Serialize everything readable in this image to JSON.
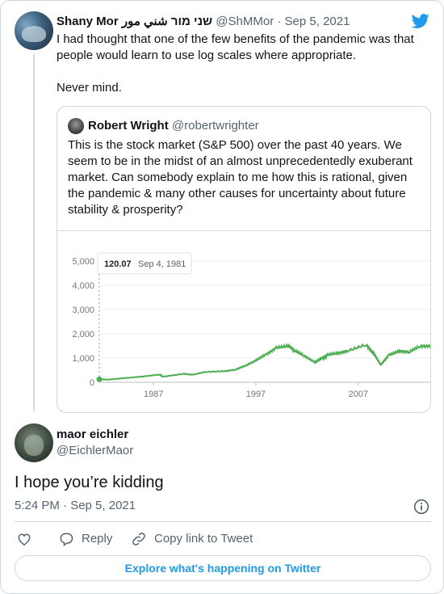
{
  "parent_tweet": {
    "author_name": "Shany Mor שני מור شني مور",
    "handle": "@ShMMor",
    "separator": "·",
    "date": "Sep 5, 2021",
    "paragraphs": [
      "I had thought that one of the few benefits of the pandemic was that people would learn to use log scales where appropriate.",
      "Never mind."
    ],
    "avatar_icon": "profile-photo",
    "platform_icon": "twitter-bird-icon",
    "brand_color": "#1d9bf0"
  },
  "quoted_tweet": {
    "author_name": "Robert Wright",
    "handle": "@robertwrighter",
    "text": "This is the stock market (S&P 500) over the past 40 years. We seem to be in the midst of an almost unprecedentedly exuberant market. Can somebody explain to me how this is rational, given the pandemic & many other causes for uncertainty about future stability & prosperity?"
  },
  "chart_data": {
    "type": "line",
    "title": "",
    "xlabel": "",
    "ylabel": "",
    "ylim": [
      0,
      5000
    ],
    "yticks": [
      "0",
      "1,000",
      "2,000",
      "3,000",
      "4,000",
      "5,000"
    ],
    "xticks": [
      "1987",
      "1997",
      "2007"
    ],
    "tooltip": {
      "value": "120.07",
      "date": "Sep 4, 1981"
    },
    "line_color": "#4caf50",
    "grid": true,
    "series": [
      {
        "x": [
          1981.7,
          1982.6,
          1984,
          1986,
          1987.6,
          1987.9,
          1990,
          1990.8,
          1992,
          1994,
          1995,
          1996,
          1997,
          1998,
          1999,
          2000.2,
          2000.8,
          2001.7,
          2002.8,
          2003.5,
          2004,
          2005,
          2006,
          2007.8,
          2008.5,
          2009.2,
          2010,
          2011,
          2012,
          2013,
          2014.2
        ],
        "y": [
          120,
          110,
          165,
          240,
          320,
          230,
          350,
          310,
          420,
          460,
          520,
          690,
          900,
          1150,
          1420,
          1500,
          1300,
          1100,
          820,
          1000,
          1130,
          1200,
          1300,
          1550,
          1200,
          720,
          1120,
          1280,
          1250,
          1480,
          1500
        ]
      }
    ]
  },
  "reply": {
    "author_name": "maor eichler",
    "handle": "@EichlerMaor",
    "text": "I hope you’re kidding",
    "timestamp": "5:24 PM · Sep 5, 2021"
  },
  "actions": {
    "reply_label": "Reply",
    "copy_label": "Copy link to Tweet",
    "explore_label": "Explore what's happening on Twitter"
  }
}
